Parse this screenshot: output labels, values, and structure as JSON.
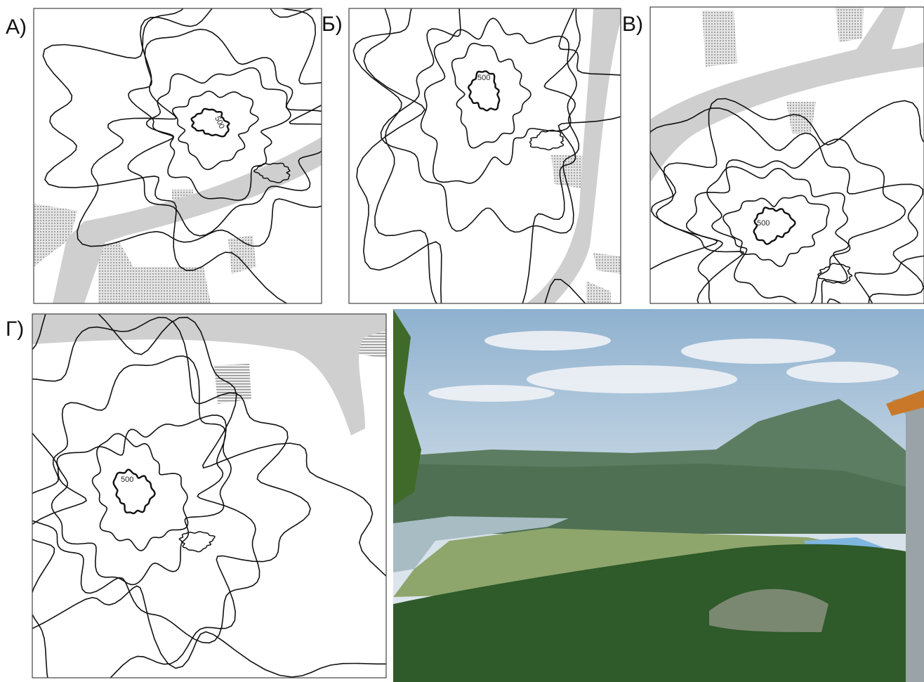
{
  "panels": [
    {
      "label": "А)",
      "contour_label": "500"
    },
    {
      "label": "Б)",
      "contour_label": "500"
    },
    {
      "label": "В)",
      "contour_label": "500"
    },
    {
      "label": "Г)",
      "contour_label": "500"
    }
  ]
}
